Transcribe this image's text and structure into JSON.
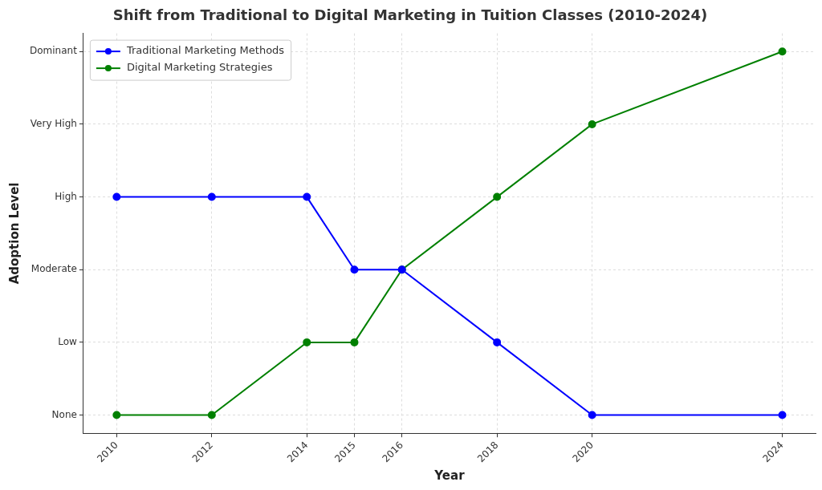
{
  "chart_data": {
    "type": "line",
    "title": "Shift from Traditional to Digital Marketing in Tuition Classes (2010-2024)",
    "x_label": "Year",
    "y_label": "Adoption Level",
    "x": [
      2010,
      2012,
      2014,
      2015,
      2016,
      2018,
      2020,
      2024
    ],
    "series": [
      {
        "name": "Traditional Marketing Methods",
        "color": "#0000ff",
        "marker": "o",
        "line_style": "solid",
        "values": [
          3,
          3,
          3,
          2,
          2,
          1,
          0,
          0
        ]
      },
      {
        "name": "Digital Marketing Strategies",
        "color": "#008000",
        "marker": "o",
        "line_style": "solid",
        "values": [
          0,
          0,
          1,
          1,
          2,
          3,
          4,
          5
        ]
      }
    ],
    "xlim": [
      2009.3,
      2024.7
    ],
    "xticks": [
      2010,
      2012,
      2014,
      2015,
      2016,
      2018,
      2020,
      2024
    ],
    "ylim": [
      -0.25,
      5.25
    ],
    "yticks": [
      {
        "value": 0,
        "label": "None"
      },
      {
        "value": 1,
        "label": "Low"
      },
      {
        "value": 2,
        "label": "Moderate"
      },
      {
        "value": 3,
        "label": "High"
      },
      {
        "value": 4,
        "label": "Very High"
      },
      {
        "value": 5,
        "label": "Dominant"
      }
    ],
    "grid": true,
    "legend": "upper left"
  }
}
